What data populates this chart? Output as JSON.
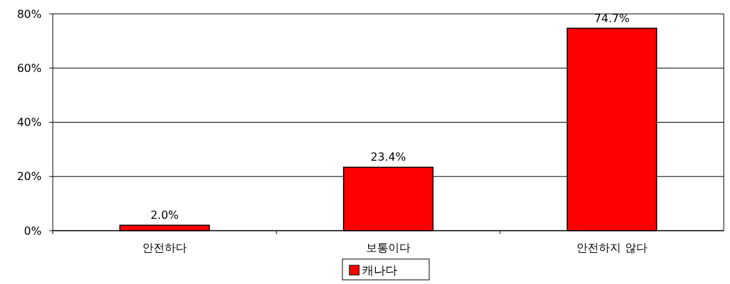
{
  "chart_data": {
    "type": "bar",
    "categories": [
      "안전하다",
      "보통이다",
      "안전하지 않다"
    ],
    "series": [
      {
        "name": "캐나다",
        "color": "#ff0000",
        "values": [
          2.0,
          23.4,
          74.7
        ],
        "value_labels": [
          "2.0%",
          "23.4%",
          "74.7%"
        ]
      }
    ],
    "ylim": [
      0,
      80
    ],
    "yticks": [
      {
        "value": 0,
        "label": "0%"
      },
      {
        "value": 20,
        "label": "20%"
      },
      {
        "value": 40,
        "label": "40%"
      },
      {
        "value": 60,
        "label": "60%"
      },
      {
        "value": 80,
        "label": "80%"
      }
    ],
    "grid": "y",
    "legend": "bottom"
  }
}
